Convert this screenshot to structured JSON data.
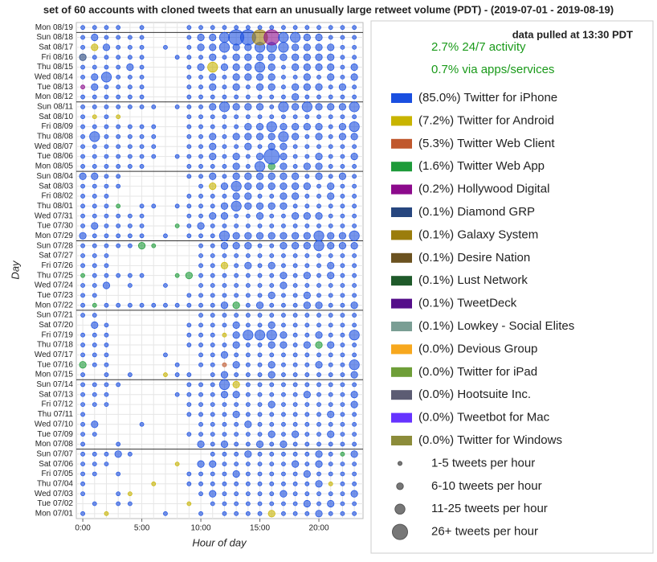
{
  "chart_data": {
    "type": "bubble-grid",
    "title": "set of 60 accounts with cloned tweets that earn an unusually large retweet volume (PDT) - (2019-07-01 - 2019-08-19)",
    "x_label": "Hour of day",
    "y_label": "Day",
    "note": "data pulled at 13:30 PDT",
    "stats": [
      "2.7% 24/7 activity",
      "0.7% via apps/services"
    ],
    "xlim": [
      -0.55,
      23.74
    ],
    "xticks": [
      {
        "value": 0,
        "label": "0:00"
      },
      {
        "value": 5,
        "label": "5:00"
      },
      {
        "value": 10,
        "label": "10:00"
      },
      {
        "value": 15,
        "label": "15:00"
      },
      {
        "value": 20,
        "label": "20:00"
      }
    ],
    "hours": [
      0,
      1,
      2,
      3,
      4,
      5,
      6,
      7,
      8,
      9,
      10,
      11,
      12,
      13,
      14,
      15,
      16,
      17,
      18,
      19,
      20,
      21,
      22,
      23
    ],
    "categories": [
      "Mon 07/01",
      "Tue 07/02",
      "Wed 07/03",
      "Thu 07/04",
      "Fri 07/05",
      "Sat 07/06",
      "Sun 07/07",
      "Mon 07/08",
      "Tue 07/09",
      "Wed 07/10",
      "Thu 07/11",
      "Fri 07/12",
      "Sat 07/13",
      "Sun 07/14",
      "Mon 07/15",
      "Tue 07/16",
      "Wed 07/17",
      "Thu 07/18",
      "Fri 07/19",
      "Sat 07/20",
      "Sun 07/21",
      "Mon 07/22",
      "Tue 07/23",
      "Wed 07/24",
      "Thu 07/25",
      "Fri 07/26",
      "Sat 07/27",
      "Sun 07/28",
      "Mon 07/29",
      "Tue 07/30",
      "Wed 07/31",
      "Thu 08/01",
      "Fri 08/02",
      "Sat 08/03",
      "Sun 08/04",
      "Mon 08/05",
      "Tue 08/06",
      "Wed 08/07",
      "Thu 08/08",
      "Fri 08/09",
      "Sat 08/10",
      "Sun 08/11",
      "Mon 08/12",
      "Tue 08/13",
      "Wed 08/14",
      "Thu 08/15",
      "Fri 08/16",
      "Sat 08/17",
      "Sun 08/18",
      "Mon 08/19"
    ],
    "sizes": [
      [
        1,
        0,
        1,
        0,
        0,
        0,
        0,
        1,
        0,
        0,
        1,
        0,
        1,
        1,
        1,
        1,
        2,
        1,
        1,
        1,
        2,
        1,
        1,
        1
      ],
      [
        0,
        1,
        0,
        1,
        1,
        0,
        0,
        0,
        0,
        1,
        0,
        1,
        1,
        1,
        1,
        1,
        1,
        1,
        1,
        2,
        1,
        2,
        1,
        1
      ],
      [
        1,
        0,
        0,
        1,
        1,
        0,
        0,
        0,
        0,
        0,
        1,
        2,
        1,
        1,
        1,
        1,
        1,
        2,
        1,
        1,
        1,
        1,
        1,
        2
      ],
      [
        1,
        0,
        0,
        0,
        0,
        0,
        1,
        0,
        0,
        1,
        1,
        1,
        1,
        1,
        1,
        1,
        1,
        1,
        1,
        1,
        2,
        1,
        1,
        1
      ],
      [
        1,
        1,
        0,
        1,
        0,
        0,
        0,
        0,
        0,
        1,
        1,
        1,
        1,
        2,
        1,
        1,
        1,
        1,
        1,
        2,
        1,
        1,
        1,
        1
      ],
      [
        1,
        1,
        1,
        0,
        0,
        0,
        0,
        0,
        1,
        0,
        2,
        2,
        1,
        1,
        1,
        1,
        1,
        1,
        2,
        1,
        2,
        1,
        1,
        1
      ],
      [
        1,
        1,
        1,
        2,
        1,
        0,
        0,
        0,
        0,
        0,
        0,
        1,
        1,
        1,
        2,
        1,
        1,
        1,
        1,
        1,
        2,
        1,
        1,
        2
      ],
      [
        1,
        0,
        0,
        1,
        0,
        0,
        0,
        0,
        0,
        0,
        2,
        1,
        2,
        1,
        1,
        2,
        1,
        2,
        1,
        1,
        1,
        1,
        1,
        1
      ],
      [
        1,
        1,
        0,
        0,
        0,
        0,
        0,
        0,
        0,
        1,
        1,
        1,
        1,
        1,
        1,
        1,
        2,
        1,
        2,
        1,
        1,
        2,
        1,
        1
      ],
      [
        1,
        2,
        0,
        0,
        0,
        1,
        0,
        0,
        0,
        0,
        1,
        1,
        1,
        1,
        2,
        1,
        1,
        1,
        1,
        1,
        1,
        1,
        1,
        1
      ],
      [
        1,
        0,
        0,
        0,
        0,
        0,
        0,
        0,
        0,
        1,
        1,
        1,
        1,
        2,
        1,
        1,
        1,
        1,
        1,
        1,
        1,
        2,
        1,
        1
      ],
      [
        1,
        1,
        1,
        0,
        0,
        0,
        0,
        0,
        0,
        1,
        1,
        1,
        1,
        1,
        1,
        1,
        2,
        1,
        1,
        1,
        1,
        1,
        1,
        2
      ],
      [
        1,
        1,
        1,
        0,
        0,
        0,
        0,
        0,
        1,
        1,
        1,
        1,
        2,
        2,
        1,
        1,
        1,
        1,
        1,
        2,
        1,
        1,
        1,
        2
      ],
      [
        1,
        1,
        1,
        1,
        0,
        0,
        0,
        0,
        0,
        1,
        1,
        1,
        3,
        2,
        1,
        1,
        1,
        1,
        1,
        1,
        1,
        1,
        1,
        1
      ],
      [
        1,
        0,
        1,
        0,
        1,
        0,
        0,
        1,
        1,
        1,
        0,
        1,
        2,
        1,
        1,
        1,
        2,
        1,
        1,
        1,
        1,
        1,
        1,
        2
      ],
      [
        2,
        1,
        1,
        0,
        0,
        0,
        0,
        0,
        1,
        0,
        1,
        1,
        1,
        2,
        1,
        1,
        2,
        1,
        1,
        1,
        2,
        1,
        1,
        3
      ],
      [
        1,
        1,
        1,
        0,
        0,
        0,
        0,
        1,
        0,
        0,
        1,
        1,
        2,
        1,
        1,
        1,
        1,
        1,
        1,
        1,
        1,
        1,
        1,
        1
      ],
      [
        1,
        1,
        1,
        0,
        0,
        0,
        0,
        0,
        0,
        1,
        1,
        1,
        1,
        2,
        1,
        1,
        2,
        2,
        1,
        2,
        2,
        2,
        1,
        1
      ],
      [
        1,
        1,
        1,
        0,
        0,
        0,
        0,
        0,
        0,
        1,
        1,
        1,
        1,
        2,
        3,
        3,
        3,
        2,
        1,
        1,
        2,
        1,
        1,
        3
      ],
      [
        0,
        2,
        1,
        0,
        0,
        0,
        0,
        0,
        0,
        1,
        1,
        1,
        1,
        2,
        1,
        1,
        2,
        1,
        1,
        1,
        1,
        1,
        1,
        1
      ],
      [
        1,
        1,
        0,
        0,
        0,
        0,
        0,
        0,
        0,
        0,
        1,
        1,
        1,
        1,
        1,
        1,
        1,
        1,
        1,
        1,
        1,
        1,
        1,
        1
      ],
      [
        1,
        1,
        1,
        1,
        1,
        1,
        1,
        1,
        1,
        1,
        1,
        1,
        2,
        2,
        1,
        2,
        1,
        1,
        1,
        2,
        2,
        1,
        1,
        2
      ],
      [
        1,
        1,
        0,
        0,
        0,
        0,
        0,
        0,
        0,
        1,
        1,
        1,
        1,
        1,
        1,
        1,
        2,
        1,
        1,
        2,
        1,
        1,
        1,
        1
      ],
      [
        1,
        1,
        2,
        0,
        1,
        0,
        0,
        1,
        0,
        0,
        1,
        1,
        1,
        1,
        1,
        1,
        1,
        2,
        1,
        1,
        1,
        1,
        1,
        1
      ],
      [
        1,
        1,
        1,
        1,
        1,
        1,
        0,
        0,
        1,
        2,
        1,
        1,
        1,
        1,
        1,
        1,
        1,
        2,
        1,
        2,
        1,
        2,
        1,
        1
      ],
      [
        1,
        1,
        1,
        0,
        0,
        0,
        0,
        0,
        0,
        0,
        1,
        1,
        2,
        1,
        2,
        1,
        2,
        1,
        1,
        1,
        1,
        2,
        1,
        1
      ],
      [
        1,
        1,
        1,
        0,
        0,
        0,
        0,
        0,
        0,
        0,
        1,
        1,
        1,
        1,
        1,
        1,
        1,
        1,
        1,
        1,
        1,
        1,
        1,
        1
      ],
      [
        1,
        1,
        1,
        1,
        1,
        2,
        1,
        0,
        0,
        0,
        1,
        1,
        2,
        2,
        2,
        1,
        1,
        2,
        2,
        2,
        3,
        2,
        2,
        2
      ],
      [
        2,
        1,
        1,
        1,
        1,
        1,
        0,
        1,
        0,
        1,
        1,
        1,
        3,
        2,
        2,
        2,
        2,
        2,
        2,
        2,
        3,
        2,
        2,
        3
      ],
      [
        1,
        2,
        1,
        1,
        1,
        1,
        0,
        0,
        1,
        1,
        2,
        1,
        1,
        1,
        1,
        1,
        1,
        1,
        1,
        1,
        1,
        1,
        1,
        1
      ],
      [
        1,
        1,
        1,
        1,
        1,
        1,
        0,
        0,
        0,
        1,
        1,
        2,
        2,
        1,
        1,
        2,
        1,
        1,
        2,
        2,
        2,
        1,
        1,
        1
      ],
      [
        1,
        1,
        1,
        1,
        0,
        1,
        1,
        0,
        1,
        1,
        1,
        1,
        2,
        3,
        2,
        2,
        2,
        2,
        1,
        1,
        1,
        1,
        1,
        1
      ],
      [
        1,
        1,
        1,
        0,
        0,
        0,
        0,
        0,
        0,
        1,
        1,
        1,
        1,
        2,
        2,
        1,
        1,
        2,
        2,
        1,
        1,
        2,
        1,
        1
      ],
      [
        1,
        1,
        1,
        1,
        0,
        0,
        0,
        0,
        0,
        0,
        1,
        2,
        2,
        3,
        2,
        2,
        2,
        2,
        2,
        2,
        1,
        2,
        1,
        1
      ],
      [
        2,
        2,
        1,
        1,
        0,
        0,
        0,
        0,
        0,
        1,
        1,
        2,
        1,
        2,
        2,
        2,
        2,
        2,
        2,
        1,
        2,
        1,
        2,
        1
      ],
      [
        1,
        1,
        1,
        1,
        1,
        1,
        0,
        0,
        0,
        1,
        1,
        1,
        1,
        2,
        1,
        3,
        2,
        2,
        1,
        2,
        2,
        1,
        1,
        1
      ],
      [
        1,
        1,
        1,
        1,
        1,
        1,
        1,
        0,
        1,
        1,
        1,
        2,
        1,
        2,
        1,
        2,
        4,
        2,
        1,
        1,
        2,
        1,
        1,
        2
      ],
      [
        1,
        1,
        1,
        1,
        1,
        1,
        1,
        0,
        0,
        1,
        1,
        2,
        1,
        1,
        2,
        1,
        2,
        2,
        1,
        1,
        1,
        1,
        1,
        1
      ],
      [
        1,
        3,
        1,
        1,
        1,
        1,
        1,
        0,
        0,
        1,
        1,
        2,
        1,
        2,
        2,
        2,
        2,
        3,
        2,
        1,
        2,
        1,
        2,
        2
      ],
      [
        1,
        1,
        1,
        1,
        1,
        1,
        1,
        0,
        0,
        1,
        1,
        1,
        1,
        1,
        2,
        2,
        3,
        2,
        2,
        2,
        2,
        1,
        2,
        3
      ],
      [
        1,
        1,
        1,
        1,
        0,
        0,
        0,
        0,
        0,
        1,
        1,
        1,
        1,
        1,
        1,
        1,
        1,
        1,
        1,
        1,
        1,
        1,
        1,
        1
      ],
      [
        1,
        1,
        1,
        1,
        1,
        1,
        1,
        0,
        1,
        1,
        1,
        2,
        3,
        2,
        2,
        2,
        1,
        3,
        2,
        3,
        2,
        2,
        2,
        3
      ],
      [
        1,
        1,
        1,
        1,
        1,
        1,
        0,
        0,
        0,
        1,
        1,
        1,
        1,
        1,
        1,
        1,
        1,
        1,
        2,
        1,
        1,
        1,
        1,
        1
      ],
      [
        1,
        2,
        1,
        1,
        1,
        1,
        0,
        0,
        0,
        1,
        1,
        2,
        1,
        2,
        1,
        2,
        2,
        1,
        2,
        2,
        2,
        1,
        2,
        1
      ],
      [
        1,
        2,
        3,
        1,
        1,
        1,
        0,
        0,
        0,
        1,
        1,
        2,
        1,
        2,
        2,
        2,
        2,
        1,
        1,
        2,
        1,
        2,
        1,
        2
      ],
      [
        1,
        1,
        1,
        1,
        2,
        1,
        0,
        0,
        0,
        1,
        2,
        3,
        2,
        2,
        2,
        3,
        2,
        1,
        2,
        2,
        2,
        2,
        1,
        2
      ],
      [
        2,
        1,
        1,
        1,
        1,
        1,
        0,
        0,
        1,
        1,
        1,
        2,
        1,
        2,
        2,
        2,
        2,
        2,
        2,
        2,
        2,
        2,
        1,
        1
      ],
      [
        1,
        2,
        2,
        1,
        1,
        1,
        0,
        1,
        0,
        1,
        2,
        2,
        3,
        2,
        2,
        3,
        3,
        3,
        2,
        2,
        2,
        2,
        1,
        1
      ],
      [
        1,
        2,
        1,
        1,
        1,
        1,
        0,
        0,
        0,
        1,
        2,
        2,
        3,
        4,
        4,
        4,
        4,
        3,
        3,
        2,
        2,
        1,
        1,
        1
      ],
      [
        1,
        1,
        1,
        1,
        0,
        1,
        0,
        0,
        0,
        1,
        1,
        1,
        1,
        1,
        1,
        1,
        1,
        1,
        1,
        1,
        1,
        1,
        1,
        1
      ]
    ],
    "highlights": [
      [
        0,
        2,
        1
      ],
      [
        0,
        16,
        1
      ],
      [
        1,
        9,
        1
      ],
      [
        2,
        4,
        1
      ],
      [
        3,
        6,
        1
      ],
      [
        3,
        21,
        1
      ],
      [
        5,
        8,
        1
      ],
      [
        6,
        22,
        3
      ],
      [
        13,
        13,
        1
      ],
      [
        14,
        7,
        1
      ],
      [
        15,
        0,
        3
      ],
      [
        15,
        12,
        2
      ],
      [
        17,
        20,
        3
      ],
      [
        18,
        12,
        1
      ],
      [
        21,
        1,
        3
      ],
      [
        21,
        13,
        3
      ],
      [
        24,
        9,
        3
      ],
      [
        24,
        8,
        3
      ],
      [
        24,
        0,
        3
      ],
      [
        27,
        5,
        3
      ],
      [
        27,
        6,
        3
      ],
      [
        29,
        8,
        3
      ],
      [
        31,
        3,
        3
      ],
      [
        33,
        11,
        1
      ],
      [
        40,
        1,
        1
      ],
      [
        40,
        3,
        1
      ],
      [
        43,
        0,
        4
      ],
      [
        45,
        11,
        1
      ],
      [
        46,
        0,
        5
      ],
      [
        47,
        1,
        1
      ],
      [
        48,
        16,
        4
      ],
      [
        48,
        15,
        6
      ],
      [
        35,
        16,
        3
      ],
      [
        25,
        12,
        1
      ]
    ],
    "sources": [
      {
        "name": "(85.0%) Twitter for iPhone",
        "color": "#1a4fe0"
      },
      {
        "name": "(7.2%) Twitter for Android",
        "color": "#c8b400"
      },
      {
        "name": "(5.3%) Twitter Web Client",
        "color": "#c0582d"
      },
      {
        "name": "(1.6%) Twitter Web App",
        "color": "#1e9b3a"
      },
      {
        "name": "(0.2%) Hollywood Digital",
        "color": "#8c0a8c"
      },
      {
        "name": "(0.1%) Diamond GRP",
        "color": "#27467f"
      },
      {
        "name": "(0.1%) Galaxy System",
        "color": "#9b7d0c"
      },
      {
        "name": "(0.1%) Desire Nation",
        "color": "#6b5220"
      },
      {
        "name": "(0.1%) Lust Network",
        "color": "#1f5a2a"
      },
      {
        "name": "(0.1%) TweetDeck",
        "color": "#550e8a"
      },
      {
        "name": "(0.1%) Lowkey - Social Elites",
        "color": "#7a9e94"
      },
      {
        "name": "(0.0%) Devious Group",
        "color": "#f7a81e"
      },
      {
        "name": "(0.0%) Twitter for iPad",
        "color": "#6e9e38"
      },
      {
        "name": "(0.0%) Hootsuite Inc.",
        "color": "#5c5c73"
      },
      {
        "name": "(0.0%) Tweetbot for Mac",
        "color": "#6633ff"
      },
      {
        "name": "(0.0%) Twitter for Windows",
        "color": "#8c8c3a"
      }
    ],
    "size_classes": [
      "1-5 tweets per hour",
      "6-10 tweets per hour",
      "11-25 tweets per hour",
      "26+ tweets per hour"
    ]
  }
}
